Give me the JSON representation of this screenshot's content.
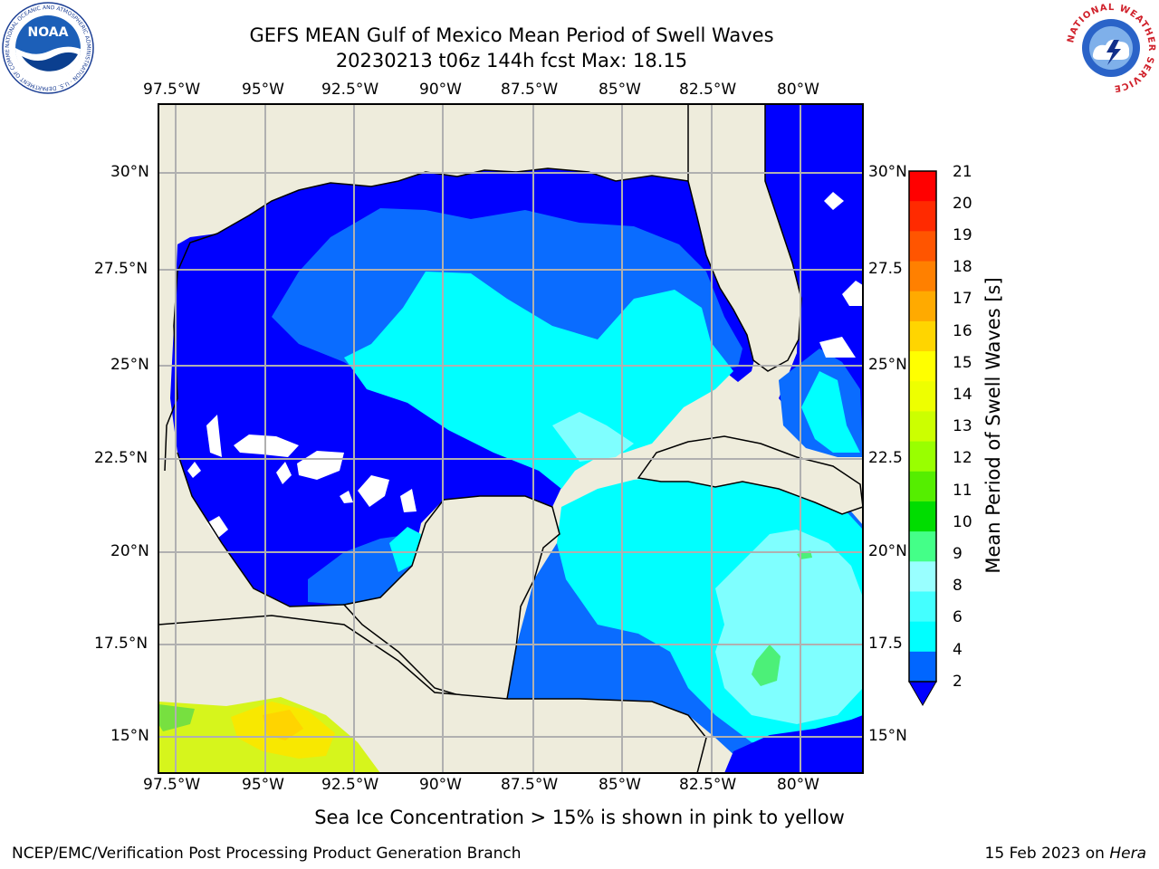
{
  "header": {
    "title_line1": "GEFS MEAN Gulf of Mexico Mean Period of Swell Waves",
    "title_line2": "20230213 t06z 144h fcst   Max: 18.15"
  },
  "map": {
    "lon_labels": [
      "97.5°W",
      "95°W",
      "92.5°W",
      "90°W",
      "87.5°W",
      "85°W",
      "82.5°W",
      "80°W"
    ],
    "lat_labels": [
      "30°N",
      "27.5°N",
      "25°N",
      "22.5°N",
      "20°N",
      "17.5°N",
      "15°N"
    ],
    "right_lat_labels": [
      "30°N",
      "27.5",
      "25°N",
      "22.5",
      "20°N",
      "17.5",
      "15°N"
    ],
    "land_color": "#eeecdc",
    "ocean_colors": {
      "blue_2_4": "#0000ff",
      "blue_4_6": "#0a6cff",
      "cyan_6_8": "#00ffff",
      "lightcyan_8_9": "#7fffff",
      "green_9_10": "#4cf078",
      "yellow_15_16": "#f8e800"
    }
  },
  "colorbar": {
    "label": "Mean Period of Swell Waves [s]",
    "ticks": [
      "21",
      "20",
      "19",
      "18",
      "17",
      "16",
      "15",
      "14",
      "13",
      "12",
      "11",
      "10",
      "9",
      "8",
      "6",
      "4",
      "2"
    ],
    "colors": [
      "#ff0000",
      "#ff2a00",
      "#ff5500",
      "#ff8000",
      "#ffaa00",
      "#ffd500",
      "#ffff00",
      "#eeff00",
      "#ccff00",
      "#99ff00",
      "#55ee00",
      "#00dd00",
      "#44ff88",
      "#99ffff",
      "#44ffff",
      "#00ffff",
      "#0066ff",
      "#0000ff"
    ]
  },
  "caption": "Sea Ice Concentration > 15% is shown in pink to yellow",
  "footer": {
    "left": "NCEP/EMC/Verification Post Processing Product Generation Branch",
    "right_date": "15 Feb 2023 on ",
    "right_host": "Hera"
  },
  "logos": {
    "noaa": {
      "text": "NOAA",
      "ring_text": "NATIONAL OCEANIC AND ATMOSPHERIC ADMINISTRATION · U.S. DEPARTMENT OF COMMERCE"
    },
    "nws": {
      "ring_text": "NATIONAL WEATHER SERVICE"
    }
  }
}
